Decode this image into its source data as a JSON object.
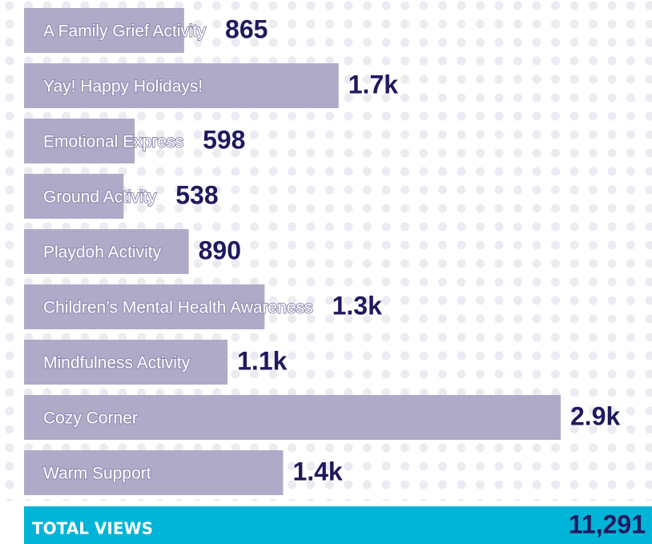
{
  "chart_data": {
    "type": "bar",
    "orientation": "horizontal",
    "categories": [
      "A Family Grief Activity",
      "Yay! Happy Holidays!",
      "Emotional Express",
      "Ground Activity",
      "Playdoh Activity",
      "Children’s Mental Health Awareness",
      "Mindfulness Activity",
      "Cozy Corner",
      "Warm Support"
    ],
    "values": [
      865,
      1700,
      598,
      538,
      890,
      1300,
      1100,
      2900,
      1400
    ],
    "value_labels": [
      "865",
      "1.7k",
      "598",
      "538",
      "890",
      "1.3k",
      "1.1k",
      "2.9k",
      "1.4k"
    ],
    "color": "#aeaac8"
  },
  "total": {
    "label": "TOTAL VIEWS",
    "value": 11291,
    "value_label": "11,291"
  }
}
